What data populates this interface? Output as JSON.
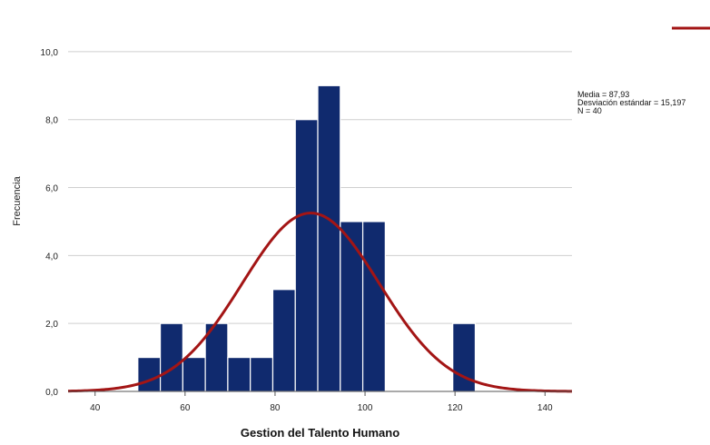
{
  "chart_data": {
    "type": "bar",
    "subtype": "histogram",
    "xlabel": "Gestion del Talento Humano",
    "ylabel": "Frecuencia",
    "xlim": [
      34,
      146
    ],
    "ylim": [
      0,
      11.2
    ],
    "x_ticks": [
      {
        "value": 40,
        "label": "40"
      },
      {
        "value": 60,
        "label": "60"
      },
      {
        "value": 80,
        "label": "80"
      },
      {
        "value": 100,
        "label": "100"
      },
      {
        "value": 120,
        "label": "120"
      },
      {
        "value": 140,
        "label": "140"
      }
    ],
    "y_ticks": [
      {
        "value": 0,
        "label": "0,0"
      },
      {
        "value": 2,
        "label": "2,0"
      },
      {
        "value": 4,
        "label": "4,0"
      },
      {
        "value": 6,
        "label": "6,0"
      },
      {
        "value": 8,
        "label": "8,0"
      },
      {
        "value": 10,
        "label": "10,0"
      }
    ],
    "bins": [
      {
        "x0": 49.5,
        "x1": 54.5,
        "count": 1
      },
      {
        "x0": 54.5,
        "x1": 59.5,
        "count": 2
      },
      {
        "x0": 59.5,
        "x1": 64.5,
        "count": 1
      },
      {
        "x0": 64.5,
        "x1": 69.5,
        "count": 2
      },
      {
        "x0": 69.5,
        "x1": 74.5,
        "count": 1
      },
      {
        "x0": 74.5,
        "x1": 79.5,
        "count": 1
      },
      {
        "x0": 79.5,
        "x1": 84.5,
        "count": 3
      },
      {
        "x0": 84.5,
        "x1": 89.5,
        "count": 8
      },
      {
        "x0": 89.5,
        "x1": 94.5,
        "count": 9
      },
      {
        "x0": 94.5,
        "x1": 99.5,
        "count": 5
      },
      {
        "x0": 99.5,
        "x1": 104.5,
        "count": 5
      },
      {
        "x0": 119.5,
        "x1": 124.5,
        "count": 2
      }
    ],
    "normal_curve": {
      "mean": 87.93,
      "sd": 15.197,
      "n": 40,
      "bin_width": 5
    },
    "grid": "horizontal",
    "legend_position": "top-right",
    "colors": {
      "bar_fill": "#102a6e",
      "bar_edge": "#ffffff",
      "curve": "#a31515",
      "grid": "#cfcfcf"
    },
    "stats_text": [
      "Media = 87,93",
      "Desviación estándar = 15,197",
      "N = 40"
    ]
  }
}
